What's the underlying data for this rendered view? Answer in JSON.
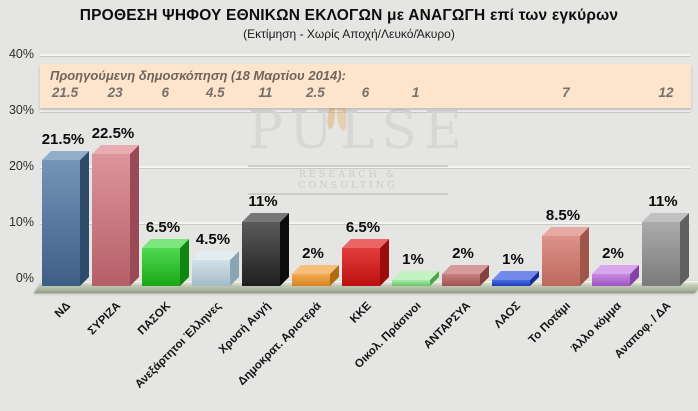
{
  "title": "ΠΡΟΘΕΣΗ ΨΗΦΟΥ ΕΘΝΙΚΩΝ ΕΚΛΟΓΩΝ με ΑΝΑΓΩΓΗ επί των εγκύρων",
  "subtitle": "(Εκτίμηση - Χωρίς Αποχή/Λευκό/Άκυρο)",
  "watermark": {
    "name": "PULSE",
    "tagline": "RESEARCH & CONSULTING"
  },
  "previous_poll": {
    "heading": "Προηγούμενη δημοσκόπηση (18 Μαρτίου 2014):"
  },
  "colors": {
    "background": "#e5e5e3",
    "band_background": "#fce4cd",
    "band_text": "#70655a",
    "floor": "#aeb7a2",
    "watermark_gray": "#d6d6d4"
  },
  "chart_data": {
    "type": "bar",
    "title": "ΠΡΟΘΕΣΗ ΨΗΦΟΥ ΕΘΝΙΚΩΝ ΕΚΛΟΓΩΝ με ΑΝΑΓΩΓΗ επί των εγκύρων",
    "subtitle": "(Εκτίμηση - Χωρίς Αποχή/Λευκό/Άκυρο)",
    "xlabel": "",
    "ylabel": "",
    "ylim": [
      0,
      40
    ],
    "grid": true,
    "y_ticks": [
      {
        "value": 40,
        "label": "40%"
      },
      {
        "value": 30,
        "label": "30%"
      },
      {
        "value": 20,
        "label": "20%"
      },
      {
        "value": 10,
        "label": "10%"
      },
      {
        "value": 0,
        "label": "0%"
      }
    ],
    "previous_poll_date": "18 Μαρτίου 2014",
    "bars": [
      {
        "category": "ΝΔ",
        "value": 21.5,
        "label": "21.5%",
        "previous": "21.5",
        "color": {
          "front_light": "#7395b8",
          "front_dark": "#3d5f84",
          "top": "#93aec9",
          "side": "#2f4b6b"
        }
      },
      {
        "category": "ΣΥΡΙΖΑ",
        "value": 22.5,
        "label": "22.5%",
        "previous": "23",
        "color": {
          "front_light": "#dd959c",
          "front_dark": "#b55e68",
          "top": "#e7adb3",
          "side": "#9a4a55"
        }
      },
      {
        "category": "ΠΑΣΟΚ",
        "value": 6.5,
        "label": "6.5%",
        "previous": "6",
        "color": {
          "front_light": "#50d850",
          "front_dark": "#17a817",
          "top": "#7ce67c",
          "side": "#0f860f"
        }
      },
      {
        "category": "Ανεξάρτητοι Έλληνες",
        "value": 4.5,
        "label": "4.5%",
        "previous": "4.5",
        "color": {
          "front_light": "#d3e1e8",
          "front_dark": "#a3bcc9",
          "top": "#e2edf2",
          "side": "#8ba6b3"
        }
      },
      {
        "category": "Χρυσή Αυγή",
        "value": 11,
        "label": "11%",
        "previous": "11",
        "color": {
          "front_light": "#5a5a5a",
          "front_dark": "#1f1f1f",
          "top": "#787878",
          "side": "#0d0d0d"
        }
      },
      {
        "category": "Δημοκρατ. Αριστερά",
        "value": 2,
        "label": "2%",
        "previous": "2.5",
        "color": {
          "front_light": "#f2ab55",
          "front_dark": "#d8821e",
          "top": "#f5bf7b",
          "side": "#b56a12"
        }
      },
      {
        "category": "ΚΚΕ",
        "value": 6.5,
        "label": "6.5%",
        "previous": "6",
        "color": {
          "front_light": "#e23d3d",
          "front_dark": "#bd1010",
          "top": "#ea6666",
          "side": "#9c0c0c"
        }
      },
      {
        "category": "Οικολ. Πράσινοι",
        "value": 1,
        "label": "1%",
        "previous": "1",
        "color": {
          "front_light": "#aeeaae",
          "front_dark": "#64c864",
          "top": "#c5f2c5",
          "side": "#4aa64a"
        }
      },
      {
        "category": "ΑΝΤΑΡΣΥΑ",
        "value": 2,
        "label": "2%",
        "previous": "",
        "color": {
          "front_light": "#c98080",
          "front_dark": "#a05252",
          "top": "#d79a9a",
          "side": "#854040"
        }
      },
      {
        "category": "ΛΑΟΣ",
        "value": 1,
        "label": "1%",
        "previous": "",
        "color": {
          "front_light": "#4a6ce2",
          "front_dark": "#1d3cb4",
          "top": "#7089ea",
          "side": "#142c96"
        }
      },
      {
        "category": "Το Ποτάμι",
        "value": 8.5,
        "label": "8.5%",
        "previous": "7",
        "color": {
          "front_light": "#dd9289",
          "front_dark": "#bd685c",
          "top": "#e7aaa2",
          "side": "#9e564b"
        }
      },
      {
        "category": "Άλλο κόμμα",
        "value": 2,
        "label": "2%",
        "previous": "",
        "color": {
          "front_light": "#c78ae0",
          "front_dark": "#9e54c2",
          "top": "#d7a6ec",
          "side": "#8544a4"
        }
      },
      {
        "category": "Αναποφ. / ΔΑ",
        "value": 11,
        "label": "11%",
        "previous": "12",
        "color": {
          "front_light": "#ababab",
          "front_dark": "#7a7a7a",
          "top": "#c0c0c0",
          "side": "#606060"
        }
      }
    ]
  }
}
